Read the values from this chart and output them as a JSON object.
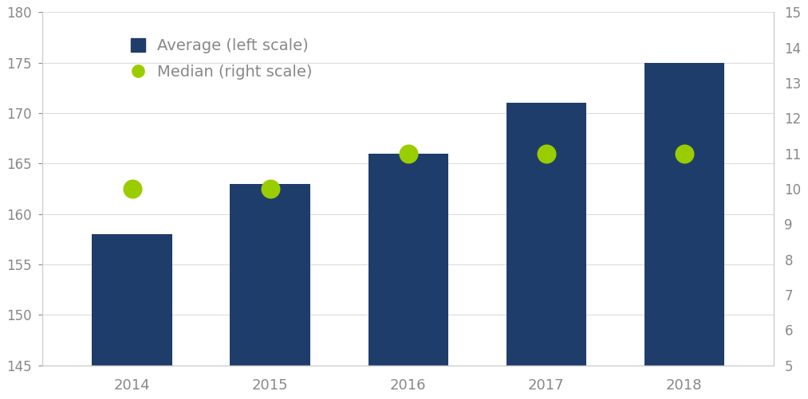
{
  "years": [
    "2014",
    "2015",
    "2016",
    "2017",
    "2018"
  ],
  "average_values": [
    158,
    163,
    166,
    171,
    175
  ],
  "median_values": [
    10,
    10,
    11,
    11,
    11
  ],
  "bar_color": "#1f3d6b",
  "dot_color": "#9acd00",
  "left_ylim": [
    145,
    180
  ],
  "right_ylim": [
    5,
    15
  ],
  "left_yticks": [
    145,
    150,
    155,
    160,
    165,
    170,
    175,
    180
  ],
  "right_yticks": [
    5,
    6,
    7,
    8,
    9,
    10,
    11,
    12,
    13,
    14,
    15
  ],
  "legend_average": "Average (left scale)",
  "legend_median": "Median (right scale)",
  "background_color": "#ffffff",
  "bar_width": 0.58,
  "tick_label_color": "#888888",
  "spine_color": "#cccccc",
  "grid_color": "#dddddd"
}
